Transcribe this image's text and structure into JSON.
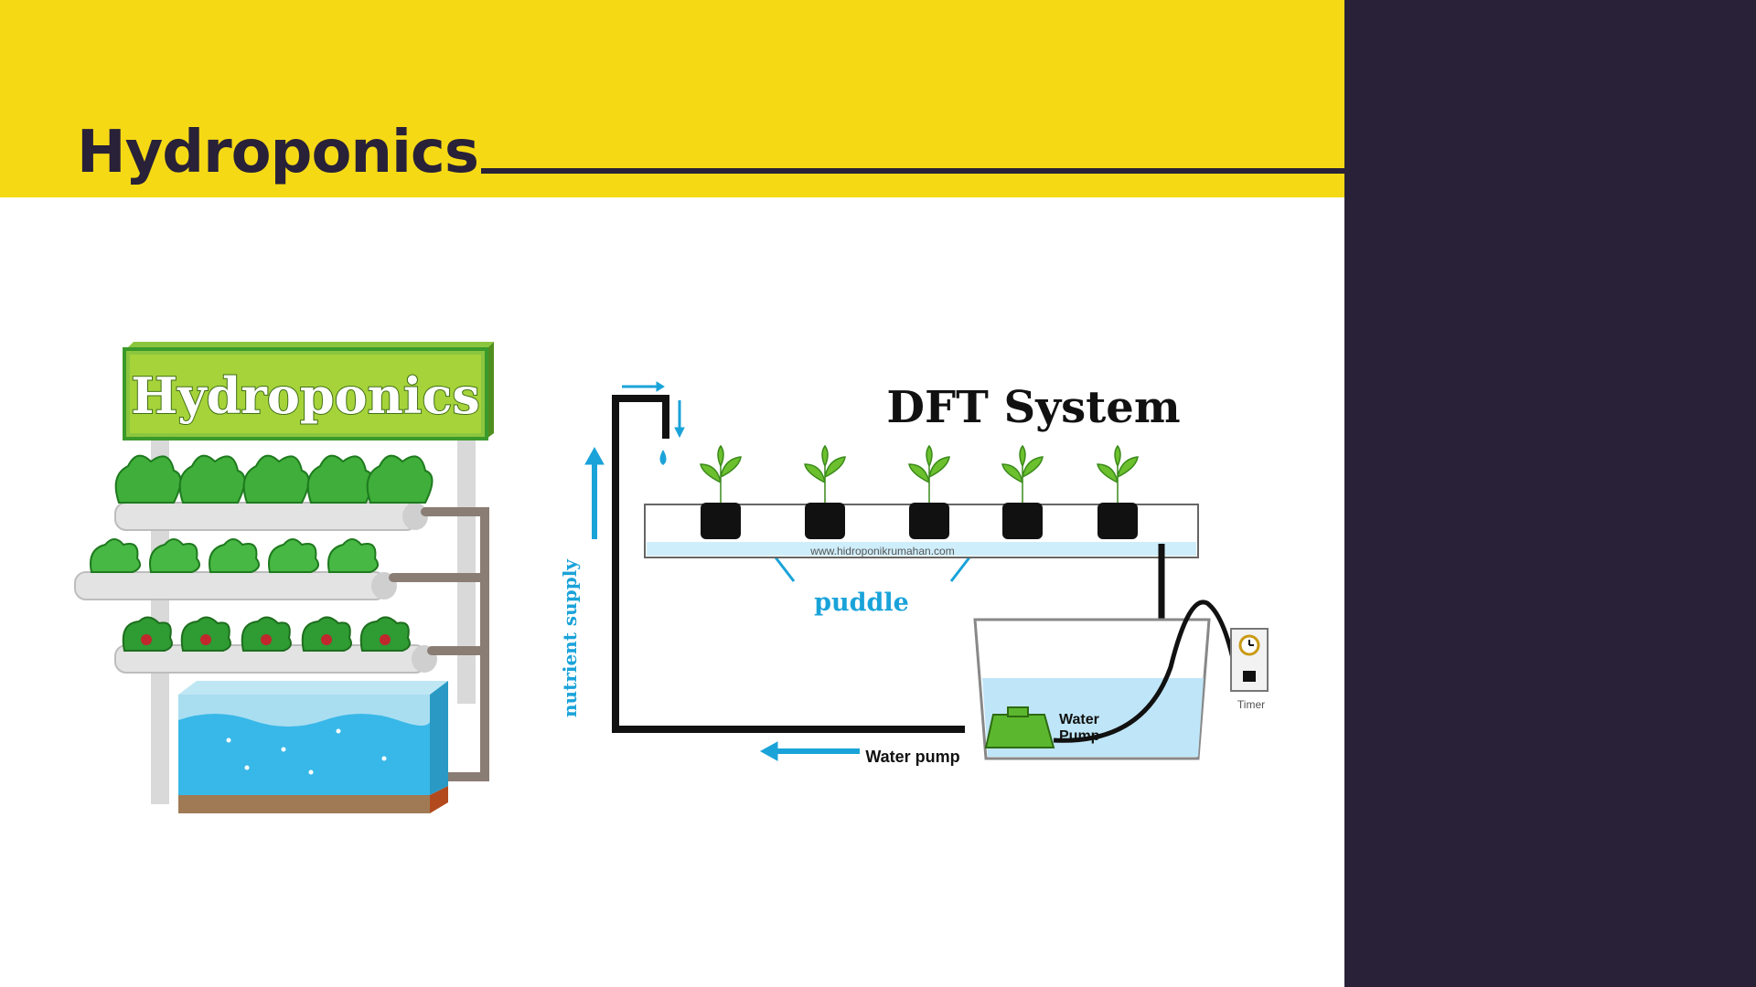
{
  "slide": {
    "title": "Hydroponics",
    "colors": {
      "yellow": "#f6d915",
      "dark": "#282138",
      "blue": "#1aa3d9",
      "green": "#5bb82e"
    }
  },
  "left_illustration": {
    "sign_text": "Hydroponics"
  },
  "dft_diagram": {
    "title": "DFT System",
    "watermark": "www.hidroponikrumahan.com",
    "puddle_label": "puddle",
    "nutrient_label": "nutrient supply",
    "water_pump_label": "Water pump",
    "pump_label_line1": "Water",
    "pump_label_line2": "Pump",
    "timer_label": "Timer"
  }
}
